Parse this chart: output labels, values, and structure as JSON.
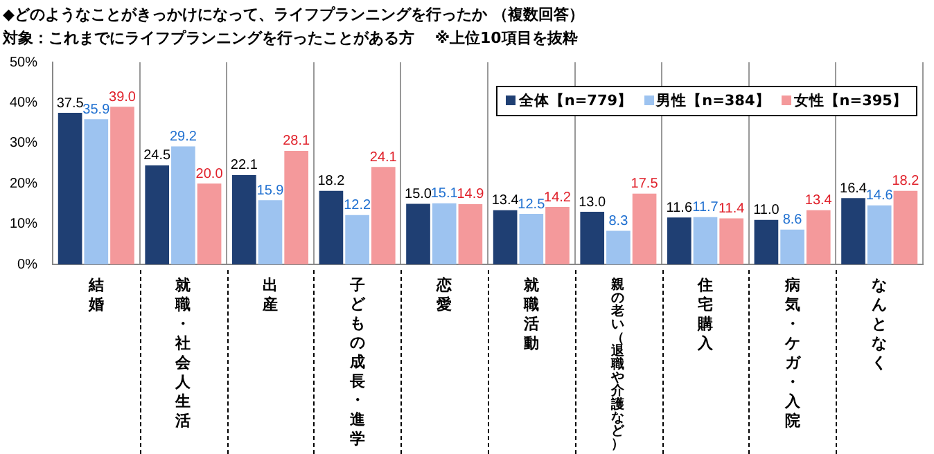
{
  "chart_data": {
    "type": "bar",
    "title": "◆どのようなことがきっかけになって、ライフプランニングを行ったか （複数回答）",
    "subtitle": "対象：これまでにライフプランニングを行ったことがある方 　※上位10項目を抜粋",
    "categories": [
      "結婚",
      "就職・社会人生活",
      "出産",
      "子どもの成長・進学",
      "恋愛",
      "就職活動",
      "親の老い（退職や介護など）",
      "住宅購入",
      "病気・ケガ・入院",
      "なんとなく"
    ],
    "series": [
      {
        "name": "全体【n=779】",
        "color": "#1f3f73",
        "values": [
          37.5,
          24.5,
          22.1,
          18.2,
          15.0,
          13.4,
          13.0,
          11.6,
          11.0,
          16.4
        ],
        "value_labels": [
          "37.5",
          "24.5",
          "22.1",
          "18.2",
          "15.0",
          "13.4",
          "13.0",
          "11.6",
          "11.0",
          "16.4"
        ]
      },
      {
        "name": "男性【n=384】",
        "color": "#9dc3f0",
        "values": [
          35.9,
          29.2,
          15.9,
          12.2,
          15.1,
          12.5,
          8.3,
          11.7,
          8.6,
          14.6
        ],
        "value_labels": [
          "35.9",
          "29.2",
          "15.9",
          "12.2",
          "15.1",
          "12.5",
          "8.3",
          "11.7",
          "8.6",
          "14.6"
        ]
      },
      {
        "name": "女性【n=395】",
        "color": "#f4999b",
        "values": [
          39.0,
          20.0,
          28.1,
          24.1,
          14.9,
          14.2,
          17.5,
          11.4,
          13.4,
          18.2
        ],
        "value_labels": [
          "39.0",
          "20.0",
          "28.1",
          "24.1",
          "14.9",
          "14.2",
          "17.5",
          "11.4",
          "13.4",
          "18.2"
        ]
      }
    ],
    "ylim": [
      0,
      50
    ],
    "yticks": [
      {
        "value": 0,
        "label": "0%"
      },
      {
        "value": 10,
        "label": "10%"
      },
      {
        "value": 20,
        "label": "20%"
      },
      {
        "value": 30,
        "label": "30%"
      },
      {
        "value": 40,
        "label": "40%"
      },
      {
        "value": 50,
        "label": "50%"
      }
    ],
    "grid": "x",
    "legend": "top right"
  }
}
